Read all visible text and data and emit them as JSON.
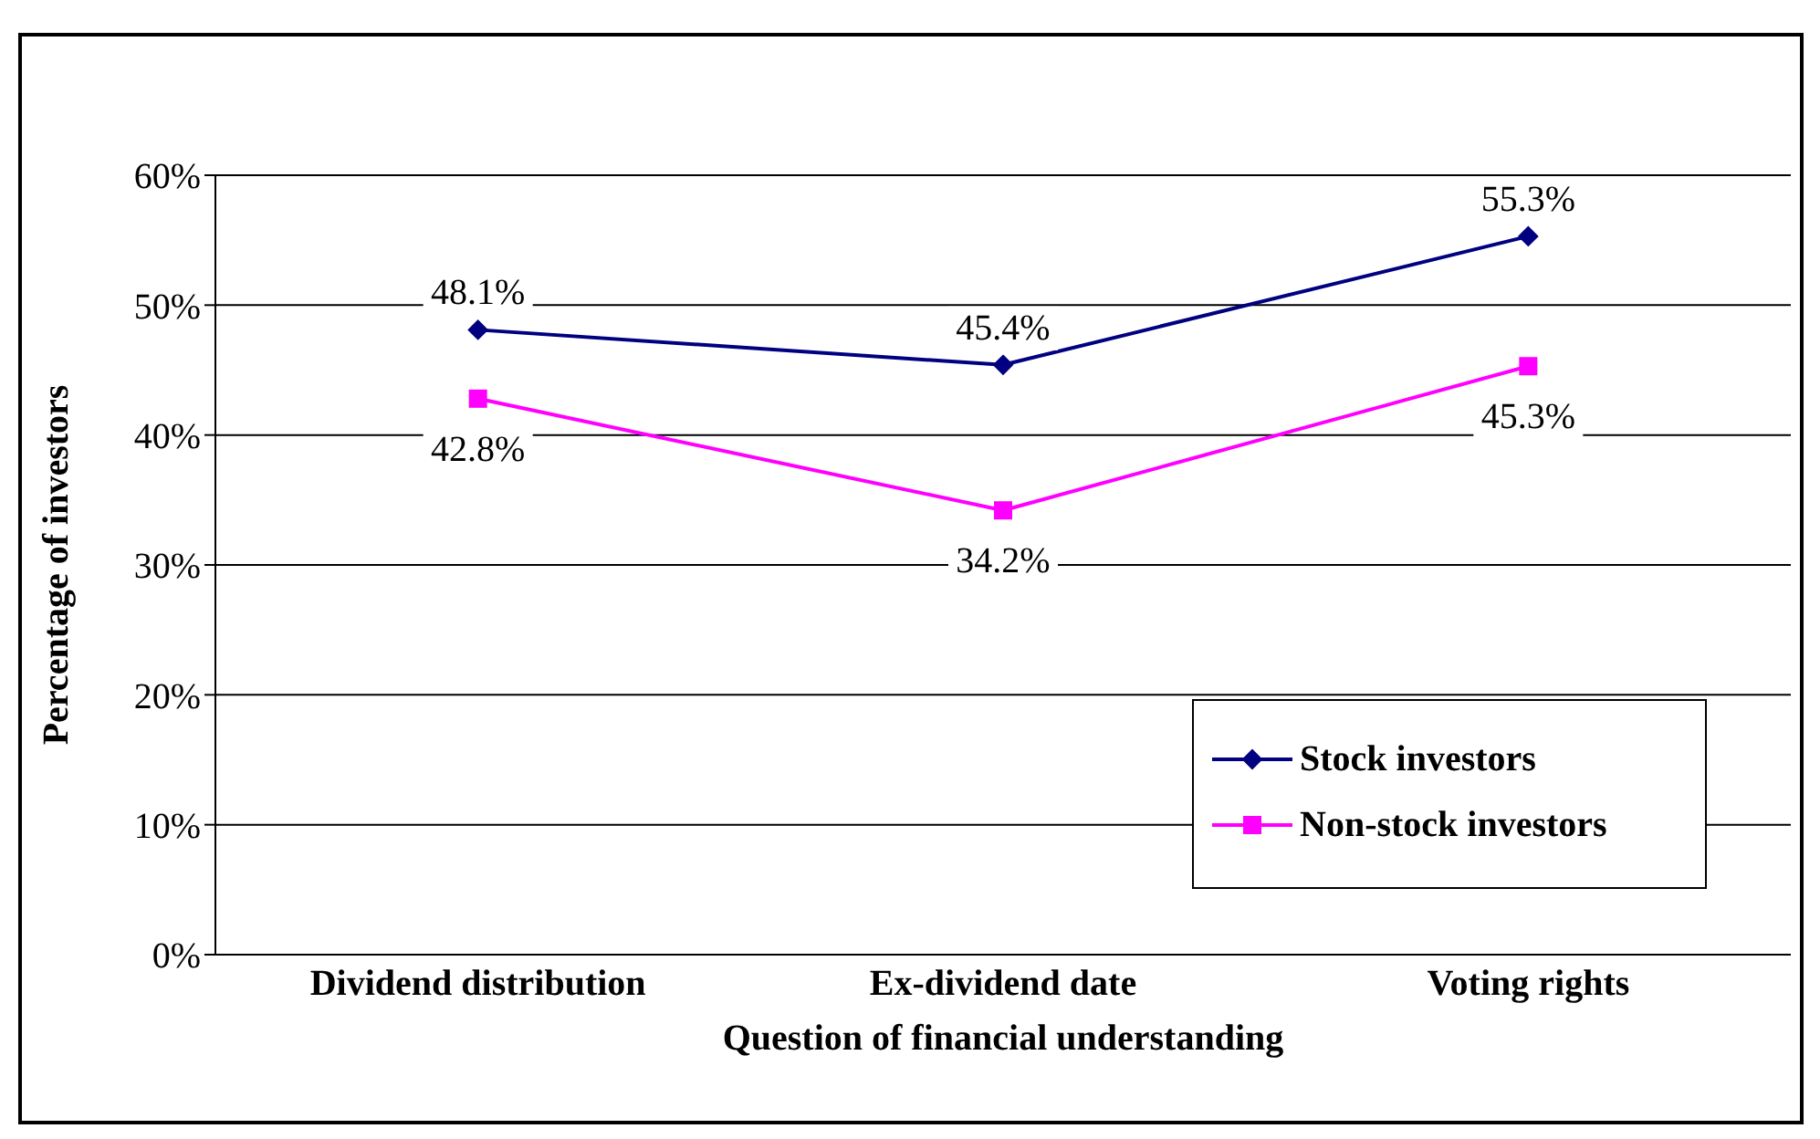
{
  "chart_data": {
    "type": "line",
    "xlabel": "Question of financial understanding",
    "ylabel": "Percentage of investors",
    "categories": [
      "Dividend distribution",
      "Ex-dividend date",
      "Voting rights"
    ],
    "series": [
      {
        "name": "Stock investors",
        "color": "#000080",
        "values": [
          48.1,
          45.4,
          55.3
        ],
        "marker": "diamond",
        "value_labels": [
          "48.1%",
          "45.4%",
          "55.3%"
        ]
      },
      {
        "name": "Non-stock investors",
        "color": "#ff00ff",
        "values": [
          42.8,
          34.2,
          45.3
        ],
        "marker": "square",
        "value_labels": [
          "42.8%",
          "34.2%",
          "45.3%"
        ]
      }
    ],
    "ylim": [
      0,
      60
    ],
    "yticks": [
      {
        "value": 0,
        "label": "0%"
      },
      {
        "value": 10,
        "label": "10%"
      },
      {
        "value": 20,
        "label": "20%"
      },
      {
        "value": 30,
        "label": "30%"
      },
      {
        "value": 40,
        "label": "40%"
      },
      {
        "value": 50,
        "label": "50%"
      },
      {
        "value": 60,
        "label": "60%"
      }
    ],
    "grid": "y",
    "legend": "bottom right"
  }
}
